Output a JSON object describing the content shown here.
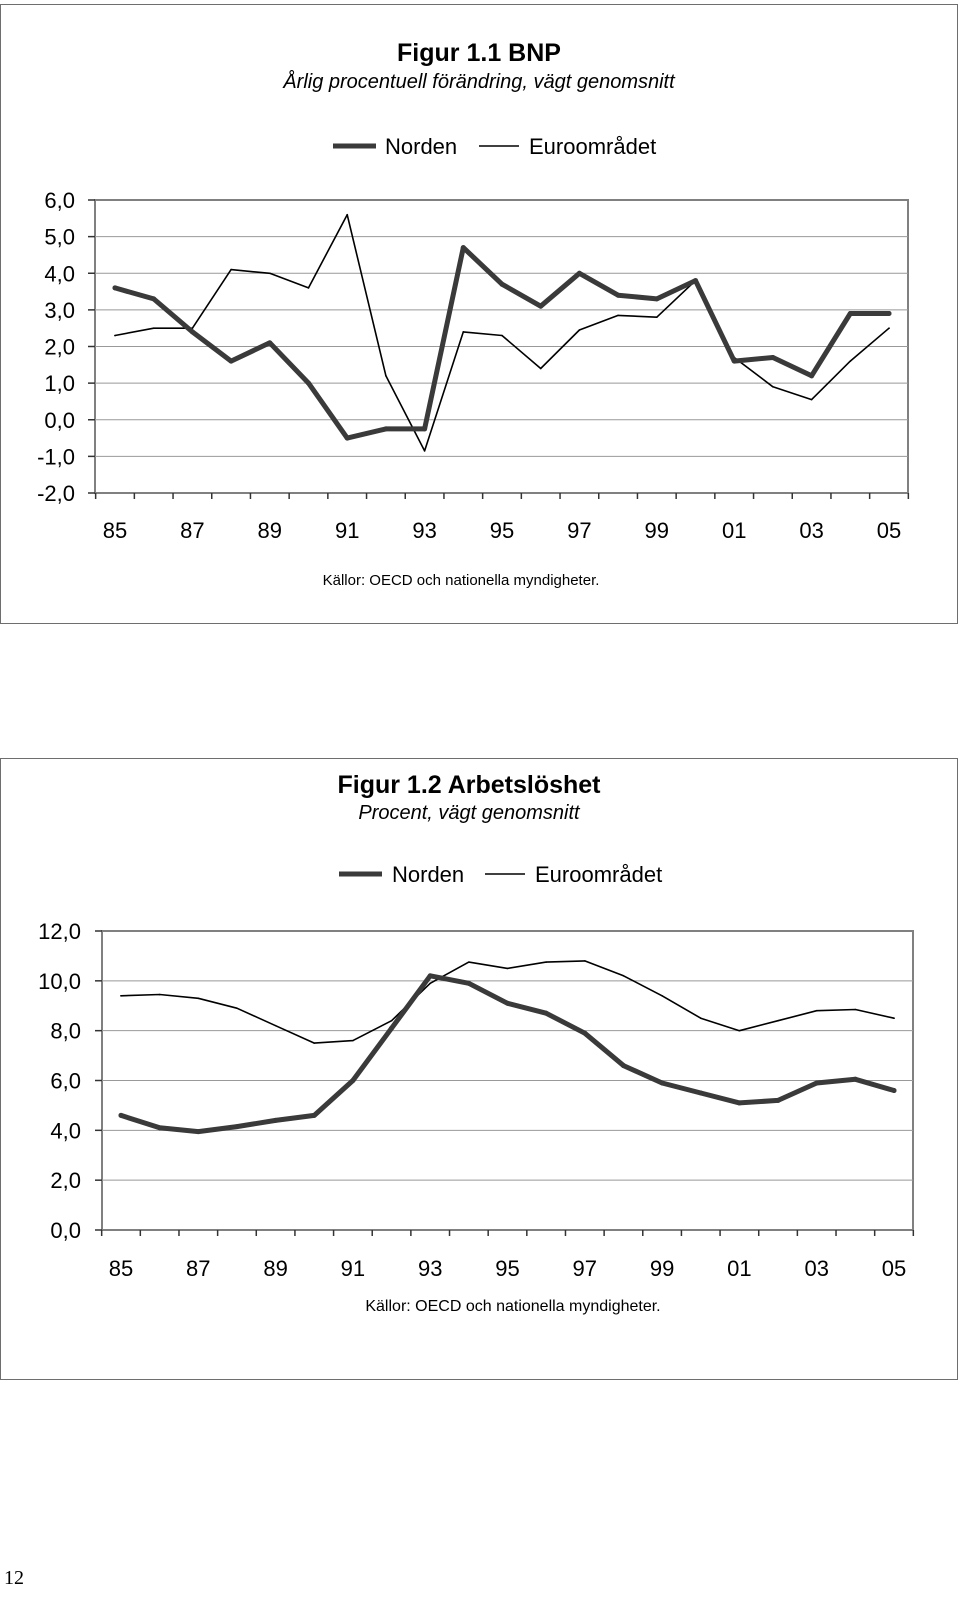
{
  "page_number": "12",
  "chart_data": [
    {
      "type": "line",
      "title": "Figur 1.1 BNP",
      "subtitle": "Årlig procentuell förändring, vägt genomsnitt",
      "source": "Källor: OECD och nationella myndigheter.",
      "x": [
        85,
        86,
        87,
        88,
        89,
        90,
        91,
        92,
        93,
        94,
        95,
        96,
        97,
        98,
        99,
        0,
        1,
        2,
        3,
        4,
        5
      ],
      "x_tick_labels": [
        "85",
        "87",
        "89",
        "91",
        "93",
        "95",
        "97",
        "99",
        "01",
        "03",
        "05"
      ],
      "y_tick_labels": [
        "6,0",
        "5,0",
        "4,0",
        "3,0",
        "2,0",
        "1,0",
        "0,0",
        "-1,0",
        "-2,0"
      ],
      "ylim": [
        -2,
        6
      ],
      "legend": "top-right",
      "series": [
        {
          "name": "Norden",
          "style": "thick",
          "color": "#3a3a3a",
          "values": [
            3.6,
            3.3,
            2.4,
            1.6,
            2.1,
            1.0,
            -0.5,
            -0.25,
            -0.25,
            4.7,
            3.7,
            3.1,
            4.0,
            3.4,
            3.3,
            3.8,
            1.6,
            1.7,
            1.2,
            2.9,
            2.9
          ]
        },
        {
          "name": "Euroområdet",
          "style": "thin",
          "color": "#000000",
          "values": [
            2.3,
            2.5,
            2.5,
            4.1,
            4.0,
            3.6,
            5.6,
            1.2,
            -0.85,
            2.4,
            2.3,
            1.4,
            2.45,
            2.85,
            2.8,
            3.8,
            1.7,
            0.9,
            0.55,
            1.6,
            2.5
          ]
        }
      ]
    },
    {
      "type": "line",
      "title": "Figur 1.2 Arbetslöshet",
      "subtitle": "Procent, vägt genomsnitt",
      "source": "Källor: OECD och nationella myndigheter.",
      "x": [
        85,
        86,
        87,
        88,
        89,
        90,
        91,
        92,
        93,
        94,
        95,
        96,
        97,
        98,
        99,
        0,
        1,
        2,
        3,
        4,
        5
      ],
      "x_tick_labels": [
        "85",
        "87",
        "89",
        "91",
        "93",
        "95",
        "97",
        "99",
        "01",
        "03",
        "05"
      ],
      "y_tick_labels": [
        "12,0",
        "10,0",
        "8,0",
        "6,0",
        "4,0",
        "2,0",
        "0,0"
      ],
      "ylim": [
        0,
        12
      ],
      "legend": "top-right",
      "series": [
        {
          "name": "Norden",
          "style": "thick",
          "color": "#3a3a3a",
          "values": [
            4.6,
            4.1,
            3.95,
            4.15,
            4.4,
            4.6,
            6.0,
            8.1,
            10.2,
            9.9,
            9.1,
            8.7,
            7.9,
            6.6,
            5.9,
            5.5,
            5.1,
            5.2,
            5.9,
            6.05,
            5.6
          ]
        },
        {
          "name": "Euroområdet",
          "style": "thin",
          "color": "#000000",
          "values": [
            9.4,
            9.45,
            9.3,
            8.9,
            8.2,
            7.5,
            7.6,
            8.4,
            9.9,
            10.75,
            10.5,
            10.75,
            10.8,
            10.2,
            9.4,
            8.5,
            8.0,
            8.4,
            8.8,
            8.85,
            8.5
          ]
        }
      ]
    }
  ]
}
